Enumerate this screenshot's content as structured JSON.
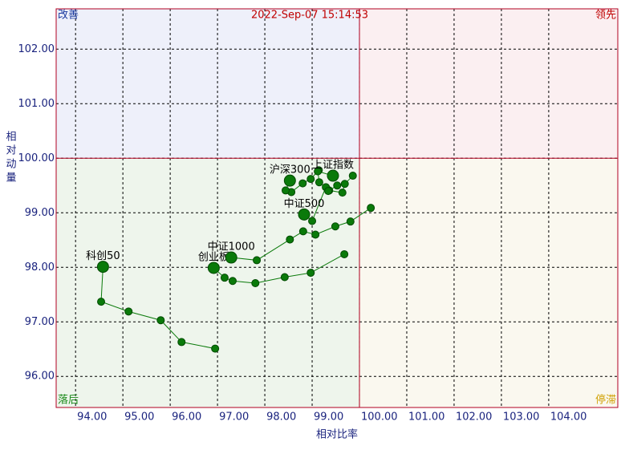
{
  "chart_data": {
    "type": "rrg",
    "title": "2022-Sep-07 15:14:53",
    "x_label": "相对比率",
    "y_label": "相对动量",
    "quadrants": {
      "top_left": "改善",
      "top_right": "领先",
      "bottom_left": "落后",
      "bottom_right": "停滞"
    },
    "center": [
      100,
      100
    ],
    "xlim": [
      93.59,
      105.46
    ],
    "ylim": [
      95.43,
      102.74
    ],
    "xticks": [
      {
        "value": 94,
        "label": "94.00"
      },
      {
        "value": 95,
        "label": "95.00"
      },
      {
        "value": 96,
        "label": "96.00"
      },
      {
        "value": 97,
        "label": "97.00"
      },
      {
        "value": 98,
        "label": "98.00"
      },
      {
        "value": 99,
        "label": "99.00"
      },
      {
        "value": 100,
        "label": "100.00"
      },
      {
        "value": 101,
        "label": "101.00"
      },
      {
        "value": 102,
        "label": "102.00"
      },
      {
        "value": 103,
        "label": "103.00"
      },
      {
        "value": 104,
        "label": "104.00"
      }
    ],
    "yticks": [
      {
        "value": 96,
        "label": "96.00"
      },
      {
        "value": 97,
        "label": "97.00"
      },
      {
        "value": 98,
        "label": "98.00"
      },
      {
        "value": 99,
        "label": "99.00"
      },
      {
        "value": 100,
        "label": "100.00"
      },
      {
        "value": 101,
        "label": "101.00"
      },
      {
        "value": 102,
        "label": "102.00"
      }
    ],
    "grid": true,
    "color": "#0a7a0a",
    "series": [
      {
        "name": "科创50",
        "x": [
          96.95,
          96.24,
          95.8,
          95.12,
          94.54,
          94.58
        ],
        "values": [
          96.51,
          96.63,
          97.03,
          97.19,
          97.37,
          98.01
        ]
      },
      {
        "name": "创业板",
        "x": [
          99.68,
          98.97,
          98.42,
          97.8,
          97.32,
          97.15,
          96.92
        ],
        "values": [
          98.24,
          97.9,
          97.82,
          97.71,
          97.75,
          97.81,
          97.99
        ]
      },
      {
        "name": "中证1000",
        "x": [
          100.24,
          99.81,
          99.49,
          99.07,
          98.81,
          98.53,
          97.83,
          97.29
        ],
        "values": [
          99.09,
          98.84,
          98.75,
          98.6,
          98.66,
          98.51,
          98.13,
          98.18
        ]
      },
      {
        "name": "中证500",
        "x": [
          99.86,
          99.69,
          99.64,
          99.36,
          99.29,
          99.0,
          98.83
        ],
        "values": [
          99.68,
          99.53,
          99.37,
          99.41,
          99.47,
          98.85,
          98.97
        ]
      },
      {
        "name": "沪深300",
        "x": [
          99.14,
          98.97,
          98.8,
          98.56,
          98.44,
          98.53
        ],
        "values": [
          99.78,
          99.62,
          99.54,
          99.38,
          99.41,
          99.59
        ]
      },
      {
        "name": "上证指数",
        "x": [
          99.53,
          99.34,
          99.15,
          99.12,
          99.44
        ],
        "values": [
          99.5,
          99.4,
          99.56,
          99.76,
          99.68
        ]
      }
    ]
  }
}
